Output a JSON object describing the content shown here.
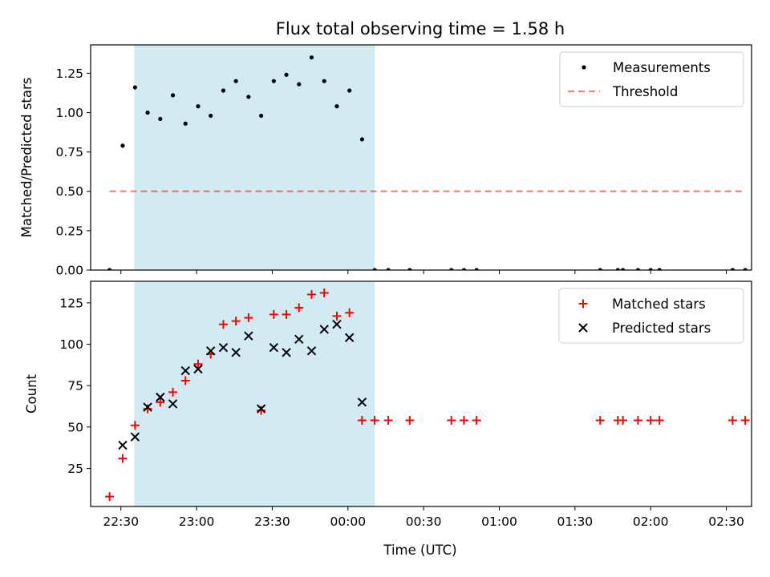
{
  "title": "Flux total observing time = 1.58 h",
  "xlabel": "Time (UTC)",
  "x_ticks": [
    "22:30",
    "23:00",
    "23:30",
    "00:00",
    "00:30",
    "01:00",
    "01:30",
    "02:00",
    "02:30"
  ],
  "x_tick_minutes": [
    0,
    30,
    60,
    90,
    120,
    150,
    180,
    210,
    240
  ],
  "x_range_minutes": [
    -12,
    250
  ],
  "shaded_interval_minutes": [
    5.3,
    100.6
  ],
  "colors": {
    "shade": "#add8e6",
    "threshold": "#ff0000",
    "matched": "#ff0000",
    "predicted": "#000000",
    "measure": "#000000"
  },
  "chart_data": [
    {
      "type": "scatter",
      "ylabel": "Matched/Predicted stars",
      "ylim": [
        0,
        1.43
      ],
      "y_ticks": [
        "0.00",
        "0.25",
        "0.50",
        "0.75",
        "1.00",
        "1.25"
      ],
      "y_tick_values": [
        0,
        0.25,
        0.5,
        0.75,
        1.0,
        1.25
      ],
      "legend_position": "top-right",
      "series": [
        {
          "name": "Measurements",
          "x": [
            -4.5,
            0.7,
            5.6,
            10.6,
            15.6,
            20.6,
            25.6,
            30.6,
            35.6,
            40.6,
            45.6,
            50.6,
            55.6,
            60.6,
            65.6,
            70.6,
            75.6,
            80.6,
            85.6,
            90.6,
            95.6,
            100.6,
            106,
            114.5,
            131,
            136,
            141,
            190,
            197,
            199,
            205,
            210,
            213.5,
            242.5,
            247.5
          ],
          "values": [
            0.0,
            0.79,
            1.16,
            1.0,
            0.96,
            1.11,
            0.93,
            1.04,
            0.98,
            1.14,
            1.2,
            1.1,
            0.98,
            1.2,
            1.24,
            1.18,
            1.35,
            1.2,
            1.04,
            1.14,
            0.83,
            0.0,
            0.0,
            0.0,
            0.0,
            0.0,
            0.0,
            0.0,
            0.0,
            0.0,
            0.0,
            0.0,
            0.0,
            0.0,
            0.0
          ]
        },
        {
          "name": "Threshold",
          "kind": "line",
          "x": [
            -4.5,
            247.5
          ],
          "values": [
            0.5,
            0.5
          ]
        }
      ]
    },
    {
      "type": "scatter",
      "ylabel": "Count",
      "ylim": [
        2,
        138
      ],
      "y_ticks": [
        "25",
        "50",
        "75",
        "100",
        "125"
      ],
      "y_tick_values": [
        25,
        50,
        75,
        100,
        125
      ],
      "legend_position": "top-right",
      "series": [
        {
          "name": "Matched stars",
          "x": [
            -4.5,
            0.7,
            5.6,
            10.6,
            15.6,
            20.6,
            25.6,
            30.6,
            35.6,
            40.6,
            45.6,
            50.6,
            55.6,
            60.6,
            65.6,
            70.6,
            75.6,
            80.6,
            85.6,
            90.6,
            95.6,
            100.6,
            106,
            114.5,
            131,
            136,
            141,
            190,
            197,
            199,
            205,
            210,
            213.5,
            242.5,
            247.5
          ],
          "values": [
            8,
            31,
            51,
            61,
            65,
            71,
            78,
            88,
            94,
            112,
            114,
            116,
            60,
            118,
            118,
            122,
            130,
            131,
            117,
            119,
            54,
            54,
            54,
            54,
            54,
            54,
            54,
            54,
            54,
            54,
            54,
            54,
            54,
            54,
            54
          ]
        },
        {
          "name": "Predicted stars",
          "x": [
            0.7,
            5.6,
            10.6,
            15.6,
            20.6,
            25.6,
            30.6,
            35.6,
            40.6,
            45.6,
            50.6,
            55.6,
            60.6,
            65.6,
            70.6,
            75.6,
            80.6,
            85.6,
            90.6,
            95.6
          ],
          "values": [
            39,
            44,
            62,
            68,
            64,
            84,
            85,
            96,
            98,
            95,
            105,
            61,
            98,
            95,
            103,
            96,
            109,
            112,
            104,
            65
          ]
        }
      ]
    }
  ]
}
